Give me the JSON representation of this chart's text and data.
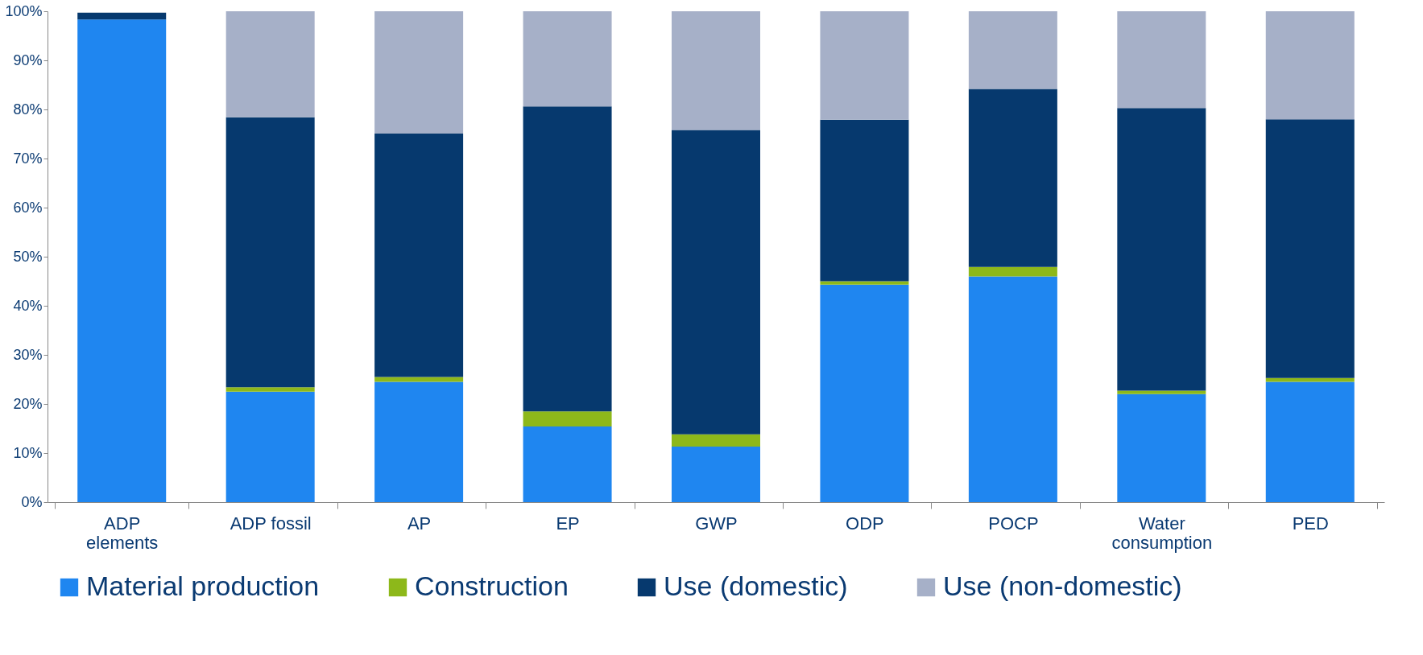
{
  "chart_data": {
    "type": "bar",
    "stacked": true,
    "categories": [
      "ADP\nelements",
      "ADP fossil",
      "AP",
      "EP",
      "GWP",
      "ODP",
      "POCP",
      "Water\nconsumption",
      "PED"
    ],
    "series": [
      {
        "name": "Material production",
        "color": "#1f86f0",
        "values": [
          98.3,
          22.5,
          24.5,
          15.4,
          11.3,
          44.3,
          46.0,
          22.0,
          24.5
        ]
      },
      {
        "name": "Construction",
        "color": "#8db81a",
        "values": [
          null,
          0.9,
          1.0,
          3.1,
          2.5,
          0.7,
          1.9,
          0.7,
          0.8
        ]
      },
      {
        "name": "Use (domestic)",
        "color": "#06396e",
        "values": [
          1.4,
          55.0,
          49.6,
          62.1,
          62.0,
          32.9,
          36.3,
          57.6,
          52.7
        ]
      },
      {
        "name": "Use (non-domestic)",
        "color": "#a6b0c8",
        "values": [
          null,
          21.6,
          24.9,
          19.4,
          24.2,
          22.1,
          15.8,
          19.7,
          22.0
        ]
      }
    ],
    "ylim": [
      0,
      100
    ],
    "yticks": [
      {
        "value": 0,
        "label": "0%"
      },
      {
        "value": 10,
        "label": "10%"
      },
      {
        "value": 20,
        "label": "20%"
      },
      {
        "value": 30,
        "label": "30%"
      },
      {
        "value": 40,
        "label": "40%"
      },
      {
        "value": 50,
        "label": "50%"
      },
      {
        "value": 60,
        "label": "60%"
      },
      {
        "value": 70,
        "label": "70%"
      },
      {
        "value": 80,
        "label": "80%"
      },
      {
        "value": 90,
        "label": "90%"
      },
      {
        "value": 100,
        "label": "100%"
      }
    ],
    "grid": false,
    "legend": "bottom"
  }
}
